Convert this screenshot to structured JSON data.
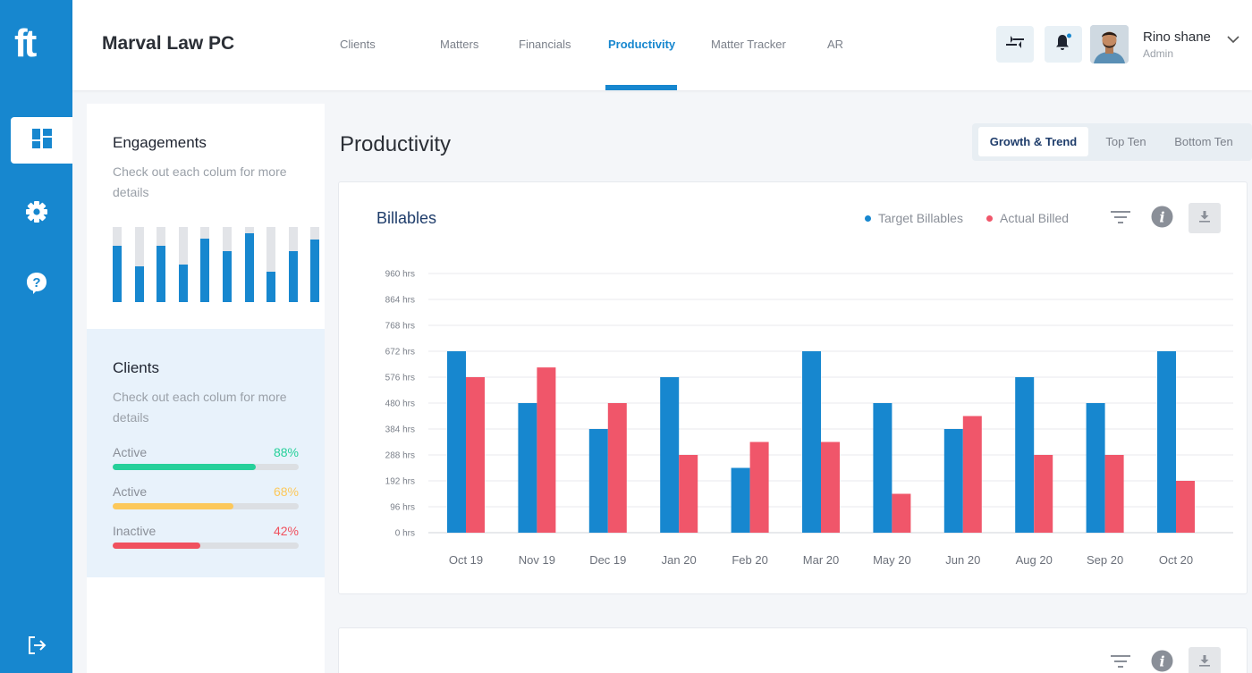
{
  "brand": {
    "logo_text": "ft",
    "accent": "#1787cf"
  },
  "header": {
    "firm_name": "Marval Law PC",
    "nav": [
      {
        "label": "Clients",
        "active": false
      },
      {
        "label": "Matters",
        "active": false
      },
      {
        "label": "Financials",
        "active": false
      },
      {
        "label": "Productivity",
        "active": true
      },
      {
        "label": "Matter Tracker",
        "active": false
      },
      {
        "label": "AR",
        "active": false
      }
    ],
    "user": {
      "name": "Rino shane",
      "role": "Admin"
    }
  },
  "rail": {
    "items": [
      {
        "icon": "dashboard-icon",
        "active": true
      },
      {
        "icon": "gear-icon",
        "active": false
      },
      {
        "icon": "help-icon",
        "active": false
      },
      {
        "icon": "logout-icon",
        "active": false
      }
    ]
  },
  "engagements": {
    "title": "Engagements",
    "subtitle": "Check out each colum for more details",
    "bar_fill_percent": [
      75,
      48,
      75,
      50,
      85,
      68,
      92,
      41,
      68,
      83
    ]
  },
  "clients": {
    "title": "Clients",
    "subtitle": "Check out each colum for more details",
    "rows": [
      {
        "label": "Active",
        "value": "88%",
        "percent": 77,
        "color": "#26d09a"
      },
      {
        "label": "Active",
        "value": "68%",
        "percent": 65,
        "color": "#fcc85a"
      },
      {
        "label": "Inactive",
        "value": "42%",
        "percent": 47,
        "color": "#f0515e"
      }
    ]
  },
  "main": {
    "title": "Productivity",
    "segments": [
      {
        "label": "Growth & Trend",
        "active": true
      },
      {
        "label": "Top Ten",
        "active": false
      },
      {
        "label": "Bottom Ten",
        "active": false
      }
    ]
  },
  "chart_data": {
    "type": "bar",
    "title": "Billables",
    "categories": [
      "Oct 19",
      "Nov 19",
      "Dec 19",
      "Jan 20",
      "Feb 20",
      "Mar 20",
      "May 20",
      "Jun 20",
      "Aug 20",
      "Sep 20",
      "Oct 20"
    ],
    "series": [
      {
        "name": "Target Billables",
        "color": "#1787cf",
        "values": [
          672,
          480,
          384,
          576,
          240,
          672,
          480,
          384,
          576,
          480,
          672
        ]
      },
      {
        "name": "Actual Billed",
        "color": "#f0566a",
        "values": [
          576,
          612,
          480,
          288,
          336,
          336,
          144,
          432,
          288,
          288,
          192
        ]
      }
    ],
    "yticks": [
      "960 hrs",
      "864 hrs",
      "768 hrs",
      "672 hrs",
      "576 hrs",
      "480 hrs",
      "384 hrs",
      "288 hrs",
      "192 hrs",
      "96 hrs",
      "0 hrs"
    ],
    "ylim": [
      0,
      960
    ],
    "grid": true,
    "legend": "top-right"
  }
}
